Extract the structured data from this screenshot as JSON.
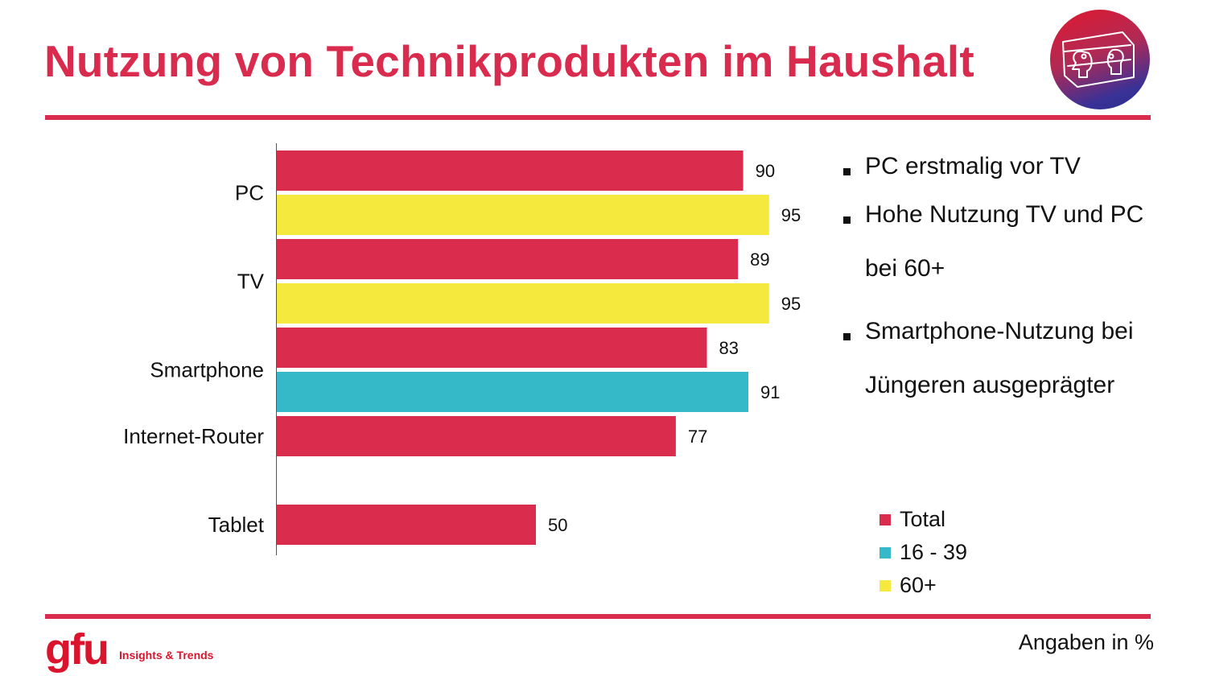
{
  "header": {
    "title": "Nutzung von Technikprodukten im Haushalt",
    "logo_icon": "face-to-face-screen-logo"
  },
  "colors": {
    "accent": "#d92b4e",
    "total": "#da2d4e",
    "age_16_39": "#35b8c8",
    "age_60_plus": "#f4e93c"
  },
  "chart_data": {
    "type": "bar",
    "orientation": "horizontal",
    "title": "Nutzung von Technikprodukten im Haushalt",
    "xlabel": "",
    "ylabel": "",
    "xlim": [
      0,
      100
    ],
    "grid": false,
    "unit_note": "Angaben in %",
    "categories": [
      "PC",
      "TV",
      "Smartphone",
      "Internet-Router",
      "Tablet"
    ],
    "series": [
      {
        "name": "Total",
        "color": "#da2d4e",
        "values": [
          90,
          89,
          83,
          77,
          50
        ]
      },
      {
        "name": "16 - 39",
        "color": "#35b8c8",
        "values": [
          null,
          null,
          91,
          null,
          null
        ]
      },
      {
        "name": "60+",
        "color": "#f4e93c",
        "values": [
          95,
          95,
          null,
          null,
          null
        ]
      }
    ],
    "legend": {
      "position": "bottom-right",
      "entries": [
        "Total",
        "16 - 39",
        "60+"
      ]
    }
  },
  "bullets": [
    {
      "lines": [
        "PC erstmalig vor TV"
      ]
    },
    {
      "lines": [
        "Hohe Nutzung TV und PC",
        "bei 60+"
      ]
    },
    {
      "lines": [
        "Smartphone-Nutzung bei",
        "Jüngeren ausgeprägter"
      ]
    }
  ],
  "legend": {
    "items": [
      {
        "label": "Total",
        "color": "#da2d4e"
      },
      {
        "label": "16 - 39",
        "color": "#35b8c8"
      },
      {
        "label": "60+",
        "color": "#f4e93c"
      }
    ]
  },
  "footer": {
    "brand": "gfu",
    "tagline": "Insights & Trends",
    "unit_note": "Angaben in %"
  }
}
